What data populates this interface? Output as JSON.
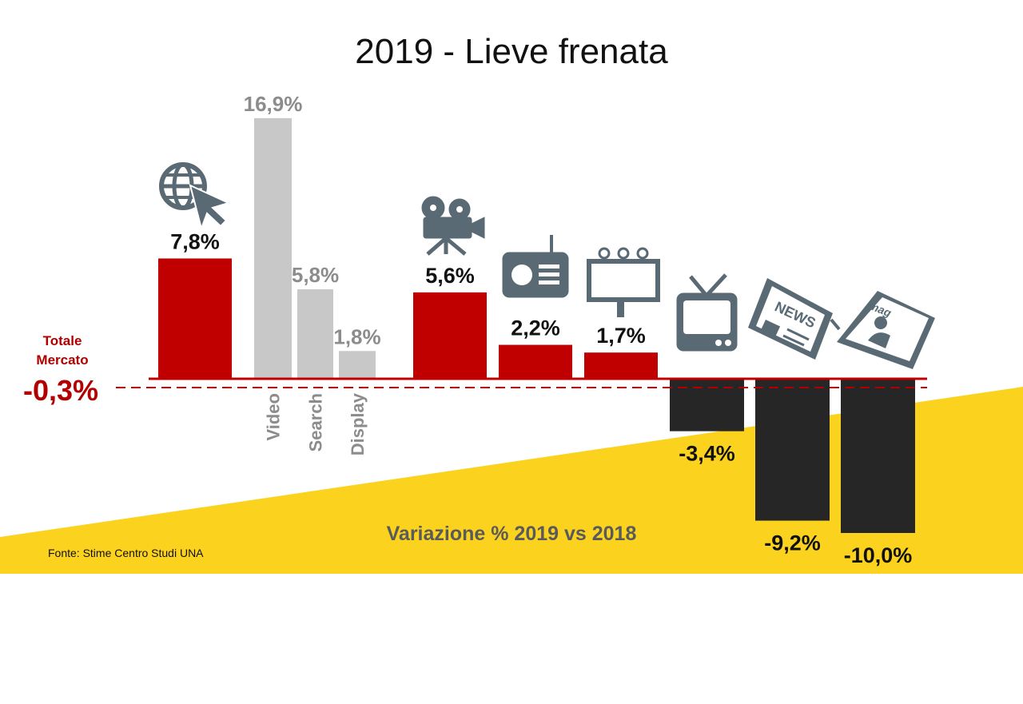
{
  "title": "2019 - Lieve frenata",
  "source": "Fonte: Stime Centro Studi UNA",
  "footer_label": "Variazione % 2019 vs 2018",
  "total": {
    "label_line1": "Totale",
    "label_line2": "Mercato",
    "value": -0.3,
    "display": "-0,3%"
  },
  "colors": {
    "positive": "#c00000",
    "negative": "#262626",
    "sub": "#c8c8c8",
    "sub_text": "#8c8c8c",
    "total": "#b00000",
    "band": "#fbd31e",
    "icon": "#596a75",
    "footer_text": "#5a5a5a"
  },
  "icons": [
    "globe-cursor-icon",
    "movie-camera-icon",
    "radio-icon",
    "billboard-icon",
    "tv-icon",
    "newspaper-icon",
    "magazine-icon"
  ],
  "chart_data": {
    "type": "bar",
    "ylabel": "Variazione % 2019 vs 2018",
    "reference_line": -0.3,
    "bars": [
      {
        "value": 7.8,
        "label": "7,8%",
        "kind": "main",
        "icon": "globe-cursor-icon"
      },
      {
        "value": 16.9,
        "label": "16,9%",
        "kind": "sub",
        "category": "Video"
      },
      {
        "value": 5.8,
        "label": "5,8%",
        "kind": "sub",
        "category": "Search"
      },
      {
        "value": 1.8,
        "label": "1,8%",
        "kind": "sub",
        "category": "Display"
      },
      {
        "value": 5.6,
        "label": "5,6%",
        "kind": "main",
        "icon": "movie-camera-icon"
      },
      {
        "value": 2.2,
        "label": "2,2%",
        "kind": "main",
        "icon": "radio-icon"
      },
      {
        "value": 1.7,
        "label": "1,7%",
        "kind": "main",
        "icon": "billboard-icon"
      },
      {
        "value": -3.4,
        "label": "-3,4%",
        "kind": "main",
        "icon": "tv-icon"
      },
      {
        "value": -9.2,
        "label": "-9,2%",
        "kind": "main",
        "icon": "newspaper-icon"
      },
      {
        "value": -10.0,
        "label": "-10,0%",
        "kind": "main",
        "icon": "magazine-icon"
      }
    ]
  }
}
